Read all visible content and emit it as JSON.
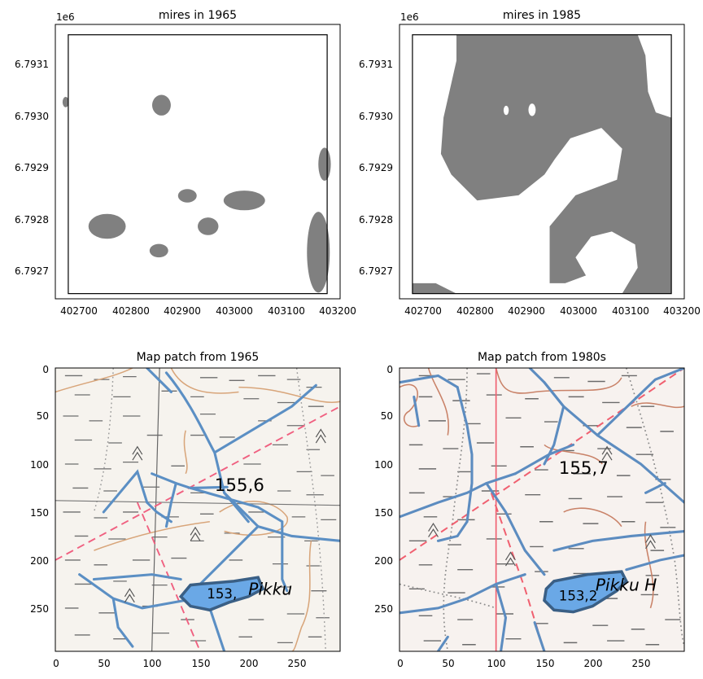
{
  "chart_data": [
    {
      "type": "map",
      "title": "mires in 1965",
      "offset_label": "1e6",
      "x_ticks": [
        "402700",
        "402800",
        "402900",
        "403000",
        "403100",
        "403200"
      ],
      "y_ticks": [
        "6.7931",
        "6.7930",
        "6.7929",
        "6.7928",
        "6.7927"
      ],
      "xlim": [
        402670,
        403220
      ],
      "ylim": [
        6792640,
        6793170
      ],
      "fill_color": "#808080",
      "boundary": [
        402695,
        6792650,
        403195,
        6793150
      ],
      "mires": [
        {
          "x": 402875,
          "y": 6793014,
          "rx": 18,
          "ry": 20
        },
        {
          "x": 402770,
          "y": 6792780,
          "rx": 36,
          "ry": 24
        },
        {
          "x": 402870,
          "y": 6792733,
          "rx": 18,
          "ry": 13
        },
        {
          "x": 402925,
          "y": 6792839,
          "rx": 18,
          "ry": 13
        },
        {
          "x": 402965,
          "y": 6792780,
          "rx": 20,
          "ry": 17
        },
        {
          "x": 403035,
          "y": 6792830,
          "rx": 40,
          "ry": 19
        },
        {
          "x": 403190,
          "y": 6792900,
          "rx": 12,
          "ry": 32
        },
        {
          "x": 403178,
          "y": 6792730,
          "rx": 22,
          "ry": 78
        },
        {
          "x": 402690,
          "y": 6793020,
          "rx": 6,
          "ry": 10
        }
      ]
    },
    {
      "type": "map",
      "title": "mires in 1985",
      "offset_label": "1e6",
      "x_ticks": [
        "402700",
        "402800",
        "402900",
        "403000",
        "403100",
        "403200"
      ],
      "y_ticks": [
        "6.7931",
        "6.7930",
        "6.7929",
        "6.7928",
        "6.7927"
      ],
      "xlim": [
        402670,
        403220
      ],
      "ylim": [
        6792640,
        6793170
      ],
      "fill_color": "#808080",
      "boundary": [
        402695,
        6792650,
        403195,
        6793150
      ],
      "mire_fill": [
        [
          402780,
          6793150
        ],
        [
          403130,
          6793150
        ],
        [
          403145,
          6793110
        ],
        [
          403150,
          6793040
        ],
        [
          403165,
          6793000
        ],
        [
          403195,
          6792990
        ],
        [
          403195,
          6792650
        ],
        [
          403100,
          6792650
        ],
        [
          403130,
          6792700
        ],
        [
          403125,
          6792745
        ],
        [
          403080,
          6792770
        ],
        [
          403040,
          6792760
        ],
        [
          403010,
          6792720
        ],
        [
          403030,
          6792685
        ],
        [
          402990,
          6792670
        ],
        [
          402960,
          6792670
        ],
        [
          402960,
          6792780
        ],
        [
          403010,
          6792840
        ],
        [
          403090,
          6792870
        ],
        [
          403100,
          6792930
        ],
        [
          403060,
          6792970
        ],
        [
          403000,
          6792950
        ],
        [
          402970,
          6792910
        ],
        [
          402950,
          6792880
        ],
        [
          402900,
          6792840
        ],
        [
          402820,
          6792830
        ],
        [
          402770,
          6792880
        ],
        [
          402750,
          6792920
        ],
        [
          402755,
          6792990
        ],
        [
          402780,
          6793100
        ]
      ],
      "bottom_left_mire": [
        [
          402695,
          6792670
        ],
        [
          402740,
          6792670
        ],
        [
          402760,
          6792660
        ],
        [
          402780,
          6792650
        ],
        [
          402695,
          6792650
        ]
      ],
      "clearings": [
        {
          "x": 402745,
          "y": 6793130,
          "rx": 20,
          "ry": 12
        },
        {
          "x": 402876,
          "y": 6793004,
          "rx": 5,
          "ry": 9
        },
        {
          "x": 402926,
          "y": 6793005,
          "rx": 7,
          "ry": 12
        }
      ]
    },
    {
      "type": "image",
      "title": "Map patch from 1965",
      "x_ticks": [
        "0",
        "50",
        "100",
        "150",
        "200",
        "250"
      ],
      "y_ticks": [
        "0",
        "50",
        "100",
        "150",
        "200",
        "250"
      ],
      "xlim": [
        0,
        295
      ],
      "ylim": [
        295,
        0
      ],
      "label_height": "155,6",
      "label_lake": "153,",
      "label_place": "Pikku",
      "lake": [
        [
          150,
          225
        ],
        [
          185,
          222
        ],
        [
          210,
          218
        ],
        [
          215,
          230
        ],
        [
          200,
          238
        ],
        [
          180,
          244
        ],
        [
          160,
          252
        ],
        [
          140,
          248
        ],
        [
          130,
          238
        ],
        [
          140,
          226
        ]
      ]
    },
    {
      "type": "image",
      "title": "Map patch from 1980s",
      "x_ticks": [
        "0",
        "50",
        "100",
        "150",
        "200",
        "250"
      ],
      "y_ticks": [
        "0",
        "50",
        "100",
        "150",
        "200",
        "250"
      ],
      "xlim": [
        0,
        295
      ],
      "ylim": [
        295,
        0
      ],
      "label_height": "155,7",
      "label_lake": "153,2",
      "label_place": "Pikku H",
      "lake": [
        [
          160,
          222
        ],
        [
          195,
          215
        ],
        [
          230,
          212
        ],
        [
          235,
          222
        ],
        [
          225,
          232
        ],
        [
          200,
          248
        ],
        [
          180,
          254
        ],
        [
          160,
          252
        ],
        [
          150,
          242
        ],
        [
          152,
          230
        ]
      ]
    }
  ]
}
